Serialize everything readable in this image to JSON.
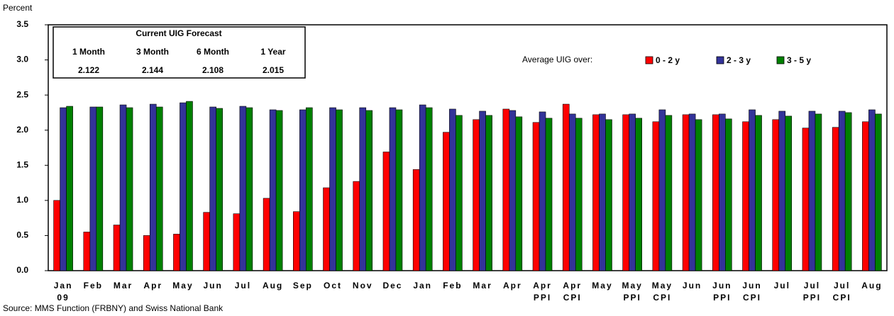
{
  "chart_data": {
    "type": "bar",
    "y_label": "Percent",
    "source": "Source: MMS Function (FRBNY) and Swiss National Bank",
    "legend_title": "Average UIG over:",
    "forecast_table": {
      "title": "Current UIG Forecast",
      "headers": [
        "1 Month",
        "3 Month",
        "6 Month",
        "1 Year"
      ],
      "values": [
        2.122,
        2.144,
        2.108,
        2.015
      ]
    },
    "categories": [
      "Jan 09",
      "Feb",
      "Mar",
      "Apr",
      "May",
      "Jun",
      "Jul",
      "Aug",
      "Sep",
      "Oct",
      "Nov",
      "Dec",
      "Jan",
      "Feb",
      "Mar",
      "Apr",
      "Apr PPI",
      "Apr CPI",
      "May",
      "May PPI",
      "May CPI",
      "Jun",
      "Jun PPI",
      "Jun CPI",
      "Jul",
      "Jul PPI",
      "Jul CPI",
      "Aug"
    ],
    "series": [
      {
        "name": "0 - 2 y",
        "color": "#ff0000",
        "values": [
          1.0,
          0.55,
          0.65,
          0.5,
          0.52,
          0.83,
          0.81,
          1.03,
          0.84,
          1.18,
          1.27,
          1.69,
          1.44,
          1.97,
          2.15,
          2.3,
          2.11,
          2.37,
          2.22,
          2.22,
          2.12,
          2.22,
          2.22,
          2.12,
          2.15,
          2.03,
          2.04,
          2.12
        ]
      },
      {
        "name": "2 - 3 y",
        "color": "#333399",
        "values": [
          2.32,
          2.33,
          2.36,
          2.37,
          2.39,
          2.33,
          2.34,
          2.29,
          2.29,
          2.32,
          2.32,
          2.32,
          2.36,
          2.3,
          2.27,
          2.28,
          2.26,
          2.23,
          2.23,
          2.23,
          2.29,
          2.23,
          2.23,
          2.29,
          2.27,
          2.27,
          2.27,
          2.29
        ]
      },
      {
        "name": "3 - 5 y",
        "color": "#008000",
        "values": [
          2.34,
          2.33,
          2.32,
          2.33,
          2.41,
          2.31,
          2.32,
          2.28,
          2.32,
          2.29,
          2.28,
          2.29,
          2.32,
          2.21,
          2.21,
          2.19,
          2.17,
          2.17,
          2.15,
          2.17,
          2.21,
          2.15,
          2.16,
          2.21,
          2.2,
          2.23,
          2.25,
          2.23
        ]
      }
    ],
    "ylim": [
      0,
      3.5
    ],
    "yticks": [
      {
        "value": 0,
        "label": "0.0"
      },
      0.5,
      {
        "value": 1,
        "label": "1.0"
      },
      1.5,
      {
        "value": 2,
        "label": "2.0"
      },
      2.5,
      {
        "value": 3,
        "label": "3.0"
      },
      3.5
    ]
  }
}
